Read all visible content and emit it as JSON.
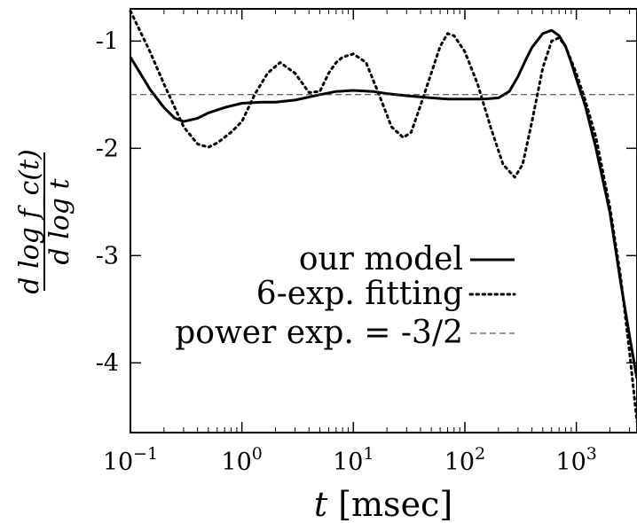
{
  "chart_data": {
    "type": "line",
    "xlabel": "t [msec]",
    "ylabel_numerator": "d log f_c(t)",
    "ylabel_denominator": "d log t",
    "xscale": "log",
    "xlim": [
      0.1,
      3500
    ],
    "ylim": [
      -4.65,
      -0.7
    ],
    "x_ticks": [
      {
        "value": 0.1,
        "base": "10",
        "exp": "−1"
      },
      {
        "value": 1,
        "base": "10",
        "exp": "0"
      },
      {
        "value": 10,
        "base": "10",
        "exp": "1"
      },
      {
        "value": 100,
        "base": "10",
        "exp": "2"
      },
      {
        "value": 1000,
        "base": "10",
        "exp": "3"
      }
    ],
    "y_ticks": [
      {
        "value": -1,
        "label": "-1"
      },
      {
        "value": -2,
        "label": "-2"
      },
      {
        "value": -3,
        "label": "-3"
      },
      {
        "value": -4,
        "label": "-4"
      }
    ],
    "grid": false,
    "legend_position": "center-right",
    "series": [
      {
        "name": "our model",
        "style": "solid",
        "x": [
          0.1,
          0.15,
          0.2,
          0.25,
          0.3,
          0.4,
          0.5,
          0.7,
          1,
          1.5,
          2,
          3,
          5,
          7,
          10,
          15,
          20,
          30,
          50,
          70,
          100,
          150,
          200,
          250,
          300,
          350,
          400,
          500,
          600,
          700,
          800,
          900,
          1000,
          1200,
          1500,
          2000,
          2500,
          3000,
          3500
        ],
        "y": [
          -1.15,
          -1.45,
          -1.62,
          -1.72,
          -1.75,
          -1.72,
          -1.67,
          -1.62,
          -1.58,
          -1.57,
          -1.57,
          -1.55,
          -1.5,
          -1.47,
          -1.46,
          -1.47,
          -1.49,
          -1.51,
          -1.53,
          -1.54,
          -1.54,
          -1.54,
          -1.53,
          -1.47,
          -1.33,
          -1.18,
          -1.06,
          -0.93,
          -0.9,
          -0.95,
          -1.05,
          -1.2,
          -1.35,
          -1.6,
          -2.0,
          -2.6,
          -3.25,
          -3.75,
          -4.15
        ]
      },
      {
        "name": "6-exp. fitting",
        "style": "dotted",
        "x": [
          0.1,
          0.15,
          0.2,
          0.3,
          0.4,
          0.5,
          0.6,
          0.8,
          1,
          1.3,
          1.7,
          2.2,
          3,
          4,
          5,
          6,
          7,
          8,
          10,
          13,
          17,
          22,
          28,
          33,
          40,
          50,
          60,
          70,
          80,
          100,
          130,
          170,
          220,
          280,
          330,
          400,
          500,
          600,
          700,
          800,
          1000,
          1200,
          1500,
          2000,
          2500,
          3000,
          3500
        ],
        "y": [
          -0.72,
          -1.1,
          -1.4,
          -1.8,
          -1.96,
          -1.99,
          -1.95,
          -1.85,
          -1.75,
          -1.5,
          -1.3,
          -1.2,
          -1.3,
          -1.48,
          -1.47,
          -1.3,
          -1.2,
          -1.15,
          -1.12,
          -1.2,
          -1.5,
          -1.8,
          -1.9,
          -1.85,
          -1.6,
          -1.3,
          -1.05,
          -0.93,
          -0.95,
          -1.1,
          -1.4,
          -1.8,
          -2.15,
          -2.27,
          -2.15,
          -1.75,
          -1.25,
          -1.0,
          -0.97,
          -1.05,
          -1.3,
          -1.55,
          -1.9,
          -2.55,
          -3.2,
          -3.9,
          -4.55
        ]
      },
      {
        "name": "power exp. = -3/2",
        "style": "dashed",
        "x": [
          0.1,
          3500
        ],
        "y": [
          -1.5,
          -1.5
        ]
      }
    ]
  }
}
